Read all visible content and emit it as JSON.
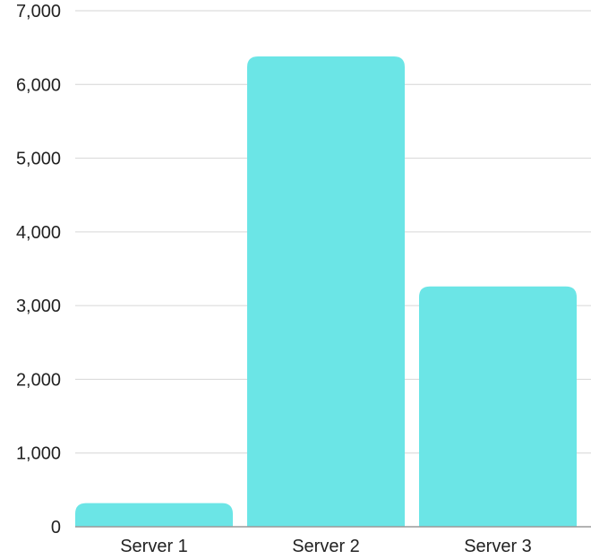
{
  "chart_data": {
    "type": "bar",
    "categories": [
      "Server 1",
      "Server 2",
      "Server 3"
    ],
    "series": [
      {
        "values": [
          320,
          6380,
          3260
        ]
      }
    ],
    "ylim": [
      0,
      7000
    ],
    "yticks": [
      0,
      1000,
      2000,
      3000,
      4000,
      5000,
      6000,
      7000
    ],
    "ytick_labels": [
      "0",
      "1,000",
      "2,000",
      "3,000",
      "4,000",
      "5,000",
      "6,000",
      "7,000"
    ],
    "grid": true,
    "legend": "none",
    "colors": {
      "bar": "#6be5e6",
      "grid": "#d6d6d6",
      "axis": "#9a9a9a",
      "text": "#222222"
    }
  }
}
